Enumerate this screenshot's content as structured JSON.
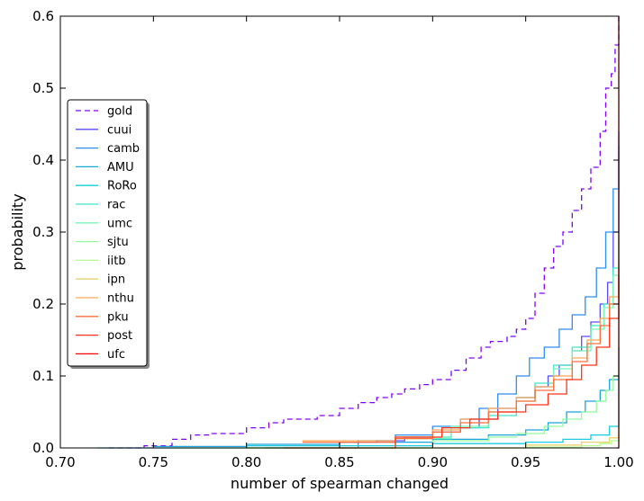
{
  "chart_data": {
    "type": "line",
    "title": "",
    "xlabel": "number of spearman changed",
    "ylabel": "probability",
    "xlim": [
      0.7,
      1.0
    ],
    "ylim": [
      0.0,
      0.6
    ],
    "grid": false,
    "legend_position": "center-left",
    "x_ticks": [
      0.7,
      0.75,
      0.8,
      0.85,
      0.9,
      0.95,
      1.0
    ],
    "x_tick_labels": [
      "0.70",
      "0.75",
      "0.80",
      "0.85",
      "0.90",
      "0.95",
      "1.00"
    ],
    "y_ticks": [
      0.0,
      0.1,
      0.2,
      0.3,
      0.4,
      0.5,
      0.6
    ],
    "y_tick_labels": [
      "0.0",
      "0.1",
      "0.2",
      "0.3",
      "0.4",
      "0.5",
      "0.6"
    ],
    "series": [
      {
        "name": "gold",
        "color": "#8000ff",
        "dash": true,
        "x": [
          0.726,
          0.745,
          0.76,
          0.77,
          0.78,
          0.8,
          0.812,
          0.82,
          0.838,
          0.85,
          0.86,
          0.87,
          0.878,
          0.885,
          0.893,
          0.9,
          0.91,
          0.918,
          0.926,
          0.931,
          0.94,
          0.945,
          0.95,
          0.955,
          0.96,
          0.965,
          0.97,
          0.975,
          0.98,
          0.985,
          0.99,
          0.993,
          0.996,
          0.998,
          1.0
        ],
        "y": [
          0.0,
          0.003,
          0.012,
          0.018,
          0.02,
          0.028,
          0.035,
          0.04,
          0.045,
          0.055,
          0.063,
          0.07,
          0.075,
          0.082,
          0.088,
          0.095,
          0.108,
          0.125,
          0.14,
          0.148,
          0.155,
          0.165,
          0.18,
          0.215,
          0.25,
          0.28,
          0.3,
          0.33,
          0.36,
          0.39,
          0.44,
          0.5,
          0.52,
          0.56,
          0.6
        ]
      },
      {
        "name": "cuui",
        "color": "#5a4bff",
        "dash": false,
        "x": [
          0.81,
          0.85,
          0.87,
          0.885,
          0.9,
          0.915,
          0.925,
          0.935,
          0.945,
          0.955,
          0.962,
          0.968,
          0.975,
          0.98,
          0.985,
          0.99,
          0.994,
          0.997,
          1.0
        ],
        "y": [
          0.0,
          0.008,
          0.01,
          0.015,
          0.022,
          0.028,
          0.04,
          0.055,
          0.07,
          0.085,
          0.1,
          0.115,
          0.135,
          0.155,
          0.175,
          0.2,
          0.23,
          0.3,
          0.44
        ]
      },
      {
        "name": "camb",
        "color": "#2e8ef2",
        "dash": false,
        "x": [
          0.81,
          0.86,
          0.88,
          0.9,
          0.915,
          0.925,
          0.935,
          0.945,
          0.952,
          0.96,
          0.968,
          0.975,
          0.982,
          0.988,
          0.993,
          0.997,
          1.0
        ],
        "y": [
          0.0,
          0.01,
          0.018,
          0.03,
          0.04,
          0.055,
          0.075,
          0.1,
          0.125,
          0.14,
          0.165,
          0.185,
          0.21,
          0.25,
          0.3,
          0.36,
          0.42
        ]
      },
      {
        "name": "AMU",
        "color": "#1aa5dc",
        "dash": false,
        "x": [
          0.75,
          0.8,
          0.85,
          0.9,
          0.93,
          0.95,
          0.962,
          0.972,
          0.982,
          0.99,
          0.995,
          1.0
        ],
        "y": [
          0.002,
          0.005,
          0.008,
          0.012,
          0.018,
          0.025,
          0.035,
          0.05,
          0.065,
          0.08,
          0.095,
          0.14
        ]
      },
      {
        "name": "RoRo",
        "color": "#18cbdf",
        "dash": false,
        "x": [
          0.72,
          0.8,
          0.9,
          0.95,
          0.97,
          0.985,
          0.995,
          1.0
        ],
        "y": [
          0.0,
          0.003,
          0.006,
          0.008,
          0.012,
          0.018,
          0.03,
          0.1
        ]
      },
      {
        "name": "rac",
        "color": "#3ee8c8",
        "dash": false,
        "x": [
          0.8,
          0.88,
          0.91,
          0.93,
          0.945,
          0.955,
          0.965,
          0.975,
          0.985,
          0.992,
          0.997,
          1.0
        ],
        "y": [
          0.0,
          0.015,
          0.028,
          0.045,
          0.07,
          0.09,
          0.115,
          0.14,
          0.17,
          0.2,
          0.25,
          0.3
        ]
      },
      {
        "name": "umc",
        "color": "#74f6b6",
        "dash": false,
        "x": [
          0.8,
          0.88,
          0.91,
          0.93,
          0.945,
          0.955,
          0.965,
          0.975,
          0.985,
          0.992,
          0.997,
          1.0
        ],
        "y": [
          0.0,
          0.013,
          0.03,
          0.05,
          0.065,
          0.085,
          0.11,
          0.135,
          0.165,
          0.195,
          0.24,
          0.29
        ]
      },
      {
        "name": "sjtu",
        "color": "#94fb9e",
        "dash": false,
        "x": [
          0.8,
          0.9,
          0.93,
          0.945,
          0.96,
          0.97,
          0.98,
          0.988,
          0.993,
          0.997,
          1.0
        ],
        "y": [
          0.0,
          0.01,
          0.015,
          0.02,
          0.03,
          0.04,
          0.05,
          0.065,
          0.08,
          0.1,
          0.11
        ]
      },
      {
        "name": "iitb",
        "color": "#b7fb8a",
        "dash": false,
        "x": [
          0.8,
          0.95,
          0.98,
          0.99,
          0.996,
          1.0
        ],
        "y": [
          0.0,
          0.001,
          0.003,
          0.006,
          0.01,
          0.03
        ]
      },
      {
        "name": "ipn",
        "color": "#e6d36e",
        "dash": false,
        "x": [
          0.8,
          0.95,
          0.98,
          0.995,
          1.0
        ],
        "y": [
          0.0,
          0.004,
          0.008,
          0.014,
          0.02
        ]
      },
      {
        "name": "nthu",
        "color": "#ffa759",
        "dash": false,
        "x": [
          0.83,
          0.88,
          0.9,
          0.915,
          0.93,
          0.945,
          0.955,
          0.965,
          0.975,
          0.983,
          0.99,
          0.995,
          1.0
        ],
        "y": [
          0.01,
          0.015,
          0.025,
          0.04,
          0.055,
          0.07,
          0.085,
          0.1,
          0.125,
          0.15,
          0.18,
          0.21,
          0.26
        ]
      },
      {
        "name": "pku",
        "color": "#ff6d3a",
        "dash": false,
        "x": [
          0.83,
          0.88,
          0.9,
          0.915,
          0.93,
          0.945,
          0.955,
          0.965,
          0.975,
          0.983,
          0.99,
          0.995,
          1.0
        ],
        "y": [
          0.008,
          0.013,
          0.022,
          0.035,
          0.05,
          0.065,
          0.08,
          0.095,
          0.12,
          0.145,
          0.17,
          0.2,
          0.25
        ]
      },
      {
        "name": "post",
        "color": "#ff3318",
        "dash": false,
        "x": [
          0.82,
          0.88,
          0.905,
          0.92,
          0.935,
          0.95,
          0.962,
          0.972,
          0.98,
          0.988,
          0.995,
          1.0
        ],
        "y": [
          0.0,
          0.015,
          0.028,
          0.04,
          0.05,
          0.06,
          0.075,
          0.095,
          0.115,
          0.14,
          0.18,
          0.24
        ]
      },
      {
        "name": "ufc",
        "color": "#ff0000",
        "dash": false,
        "x": [
          0.999,
          1.0,
          1.0
        ],
        "y": [
          0.0,
          0.0,
          0.6
        ]
      }
    ]
  }
}
